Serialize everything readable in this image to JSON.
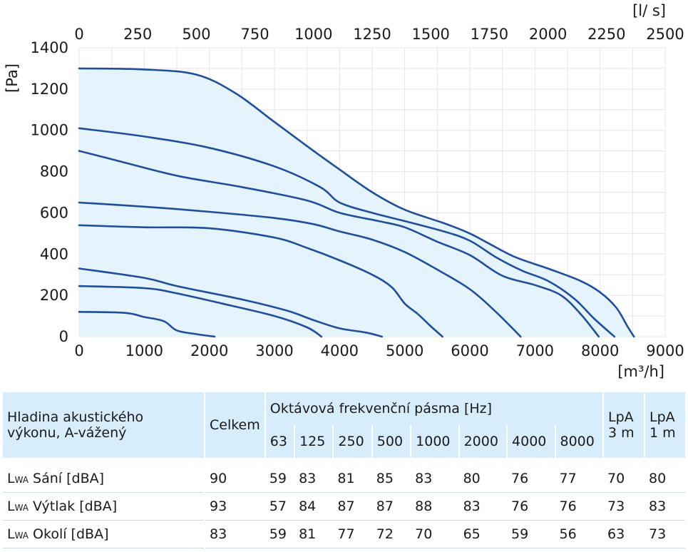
{
  "chart_data": {
    "type": "line",
    "x_bottom_unit": "[m³/h]",
    "x_top_unit": "[l/ s]",
    "y_unit": "[Pa]",
    "x_bottom_ticks": [
      "0",
      "1000",
      "2000",
      "3000",
      "4000",
      "5000",
      "6000",
      "7000",
      "8000",
      "9000"
    ],
    "x_top_ticks": [
      "0",
      "250",
      "500",
      "750",
      "1000",
      "1250",
      "1500",
      "1750",
      "2000",
      "2250",
      "2500"
    ],
    "y_ticks": [
      "0",
      "200",
      "400",
      "600",
      "800",
      "1000",
      "1200",
      "1400"
    ],
    "xlim": [
      0,
      9000
    ],
    "ylim": [
      0,
      1400
    ],
    "grid": true,
    "fill_color": "#e4f3fc",
    "line_color": "#1f4e9c",
    "series": [
      {
        "points": [
          [
            0,
            1300
          ],
          [
            1000,
            1295
          ],
          [
            1800,
            1270
          ],
          [
            2400,
            1180
          ],
          [
            3000,
            1040
          ],
          [
            3600,
            900
          ],
          [
            4000,
            810
          ],
          [
            4500,
            700
          ],
          [
            5000,
            615
          ],
          [
            5600,
            550
          ],
          [
            6000,
            500
          ],
          [
            6300,
            450
          ],
          [
            6700,
            385
          ],
          [
            7200,
            330
          ],
          [
            7700,
            270
          ],
          [
            8000,
            215
          ],
          [
            8250,
            140
          ],
          [
            8420,
            50
          ],
          [
            8520,
            0
          ]
        ]
      },
      {
        "points": [
          [
            0,
            1010
          ],
          [
            1000,
            970
          ],
          [
            2000,
            915
          ],
          [
            3000,
            825
          ],
          [
            3700,
            725
          ],
          [
            4000,
            650
          ],
          [
            4500,
            600
          ],
          [
            5000,
            560
          ],
          [
            5600,
            510
          ],
          [
            6000,
            465
          ],
          [
            6400,
            385
          ],
          [
            6800,
            320
          ],
          [
            7200,
            270
          ],
          [
            7600,
            185
          ],
          [
            7900,
            90
          ],
          [
            8220,
            0
          ]
        ]
      },
      {
        "points": [
          [
            0,
            900
          ],
          [
            500,
            860
          ],
          [
            1500,
            780
          ],
          [
            2500,
            725
          ],
          [
            3500,
            660
          ],
          [
            4000,
            600
          ],
          [
            4600,
            560
          ],
          [
            5000,
            530
          ],
          [
            5500,
            460
          ],
          [
            6000,
            395
          ],
          [
            6500,
            295
          ],
          [
            7000,
            250
          ],
          [
            7400,
            200
          ],
          [
            7700,
            110
          ],
          [
            7980,
            0
          ]
        ]
      },
      {
        "points": [
          [
            0,
            650
          ],
          [
            1000,
            630
          ],
          [
            2000,
            605
          ],
          [
            3000,
            575
          ],
          [
            3600,
            545
          ],
          [
            4000,
            510
          ],
          [
            4500,
            470
          ],
          [
            5000,
            410
          ],
          [
            5500,
            325
          ],
          [
            6000,
            230
          ],
          [
            6400,
            120
          ],
          [
            6780,
            0
          ]
        ]
      },
      {
        "points": [
          [
            0,
            540
          ],
          [
            1000,
            530
          ],
          [
            2000,
            525
          ],
          [
            3000,
            480
          ],
          [
            3500,
            430
          ],
          [
            4000,
            370
          ],
          [
            4500,
            300
          ],
          [
            4800,
            240
          ],
          [
            5000,
            160
          ],
          [
            5200,
            110
          ],
          [
            5400,
            50
          ],
          [
            5580,
            0
          ]
        ]
      },
      {
        "points": [
          [
            0,
            330
          ],
          [
            1000,
            285
          ],
          [
            1500,
            245
          ],
          [
            2500,
            180
          ],
          [
            3200,
            125
          ],
          [
            3600,
            80
          ],
          [
            4000,
            40
          ],
          [
            4400,
            20
          ],
          [
            4650,
            0
          ]
        ]
      },
      {
        "points": [
          [
            0,
            245
          ],
          [
            1000,
            235
          ],
          [
            1500,
            210
          ],
          [
            2200,
            160
          ],
          [
            3000,
            100
          ],
          [
            3500,
            45
          ],
          [
            3720,
            0
          ]
        ]
      },
      {
        "points": [
          [
            0,
            120
          ],
          [
            700,
            115
          ],
          [
            1000,
            95
          ],
          [
            1300,
            75
          ],
          [
            1500,
            30
          ],
          [
            1800,
            12
          ],
          [
            2080,
            0
          ]
        ]
      }
    ]
  },
  "table": {
    "row_header_label": "Hladina akustického výkonu, A-vážený",
    "total_label": "Celkem",
    "band_group_label": "Oktávová frekvenční pásma [Hz]",
    "bands": [
      "63",
      "125",
      "250",
      "500",
      "1000",
      "2000",
      "4000",
      "8000"
    ],
    "lpa3_label": "LpA 3 m",
    "lpa1_label": "LpA 1 m",
    "rows": [
      {
        "lw_prefix": "L",
        "lw_sub": "WA",
        "label": " Sání [dBA]",
        "total": "90",
        "values": [
          "59",
          "83",
          "81",
          "85",
          "83",
          "80",
          "76",
          "77"
        ],
        "lpa3": "70",
        "lpa1": "80"
      },
      {
        "lw_prefix": "L",
        "lw_sub": "WA",
        "label": " Výtlak [dBA]",
        "total": "93",
        "values": [
          "57",
          "84",
          "87",
          "87",
          "88",
          "83",
          "76",
          "76"
        ],
        "lpa3": "73",
        "lpa1": "83"
      },
      {
        "lw_prefix": "L",
        "lw_sub": "WA",
        "label": " Okolí [dBA]",
        "total": "83",
        "values": [
          "59",
          "81",
          "77",
          "72",
          "70",
          "65",
          "59",
          "56"
        ],
        "lpa3": "63",
        "lpa1": "73"
      }
    ]
  }
}
